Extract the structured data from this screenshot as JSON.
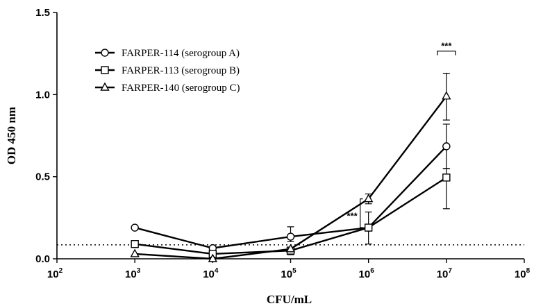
{
  "chart_data": {
    "type": "line",
    "x_scale": "log10",
    "x": [
      1000,
      10000,
      100000,
      1000000,
      10000000
    ],
    "xlim": [
      100,
      100000000
    ],
    "x_ticks": [
      {
        "base": "10",
        "exp": "2",
        "value": 100
      },
      {
        "base": "10",
        "exp": "3",
        "value": 1000
      },
      {
        "base": "10",
        "exp": "4",
        "value": 10000
      },
      {
        "base": "10",
        "exp": "5",
        "value": 100000
      },
      {
        "base": "10",
        "exp": "6",
        "value": 1000000
      },
      {
        "base": "10",
        "exp": "7",
        "value": 10000000
      },
      {
        "base": "10",
        "exp": "8",
        "value": 100000000
      }
    ],
    "ylim": [
      0,
      1.5
    ],
    "y_ticks": [
      {
        "label": "0.0",
        "value": 0
      },
      {
        "label": "0.5",
        "value": 0.5
      },
      {
        "label": "1.0",
        "value": 1.0
      },
      {
        "label": "1.5",
        "value": 1.5
      }
    ],
    "xlabel": "CFU/mL",
    "ylabel": "OD 450 nm",
    "cutoff": 0.085,
    "legend_position": "top-left",
    "series": [
      {
        "name": "FARPER-114 (serogroup A)",
        "marker": "circle",
        "values": [
          0.19,
          0.065,
          0.135,
          0.19,
          0.685
        ],
        "err_lower": [
          null,
          null,
          0.105,
          null,
          0.55
        ],
        "err_upper": [
          null,
          null,
          0.195,
          null,
          0.82
        ]
      },
      {
        "name": "FARPER-113 (serogroup B)",
        "marker": "square",
        "values": [
          0.09,
          0.03,
          0.05,
          0.19,
          0.495
        ],
        "err_lower": [
          null,
          null,
          0.025,
          0.09,
          0.305
        ],
        "err_upper": [
          null,
          null,
          0.07,
          0.285,
          0.55
        ]
      },
      {
        "name": "FARPER-140 (serogroup C)",
        "marker": "triangle",
        "values": [
          0.03,
          0.0,
          0.06,
          0.365,
          0.99
        ],
        "err_lower": [
          null,
          null,
          null,
          0.335,
          0.845
        ],
        "err_upper": [
          null,
          null,
          null,
          0.395,
          1.13
        ]
      }
    ],
    "annotations": [
      {
        "text": "***",
        "x": 1000000,
        "y_low": 0.19,
        "y_high": 0.365,
        "type": "bracket-left"
      },
      {
        "text": "***",
        "x": 10000000,
        "y": 1.265,
        "type": "bracket-top"
      }
    ]
  }
}
